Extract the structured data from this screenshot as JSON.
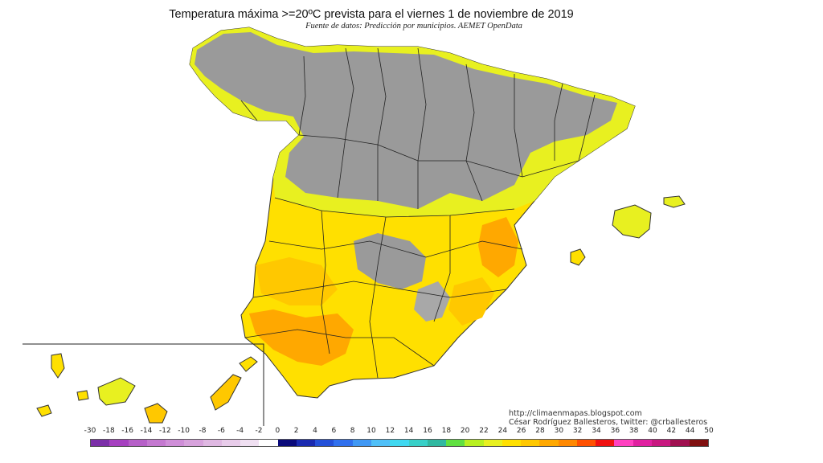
{
  "title": "Temperatura máxima >=20ºC prevista para el viernes 1 de noviembre de 2019",
  "subtitle": "Fuente de datos: Predicción por municipios. AEMET OpenData",
  "credits": {
    "blog": "http://climaenmapas.blogspot.com",
    "author": "César Rodríguez Ballesteros, twitter: @crballesteros"
  },
  "legend": {
    "ticks": [
      "-30",
      "-18",
      "-16",
      "-14",
      "-12",
      "-10",
      "-8",
      "-6",
      "-4",
      "-2",
      "0",
      "2",
      "4",
      "6",
      "8",
      "10",
      "12",
      "14",
      "16",
      "18",
      "20",
      "22",
      "24",
      "26",
      "28",
      "30",
      "32",
      "34",
      "36",
      "38",
      "40",
      "42",
      "44",
      "50"
    ],
    "colors": [
      "#7b2fa8",
      "#a640c0",
      "#b660c8",
      "#c478d0",
      "#cf8ed8",
      "#d7a2dc",
      "#dfb8e2",
      "#e8ccea",
      "#f0e0f2",
      "#ffffff",
      "#0a0a7a",
      "#1a2ab0",
      "#2450d8",
      "#3070ee",
      "#4098f4",
      "#50c0f8",
      "#40d8f0",
      "#38d0c8",
      "#30b8a0",
      "#60e040",
      "#b8f020",
      "#e8f020",
      "#ffe000",
      "#ffc800",
      "#ffa800",
      "#ff8800",
      "#ff5000",
      "#f01010",
      "#ff40c0",
      "#e020a0",
      "#c81880",
      "#a01050",
      "#801010"
    ]
  },
  "map_colors": {
    "gray": "#9a9a9a",
    "yellow_green": "#e8f020",
    "yellow": "#ffe000",
    "gold": "#ffc800",
    "orange": "#ffa800"
  }
}
